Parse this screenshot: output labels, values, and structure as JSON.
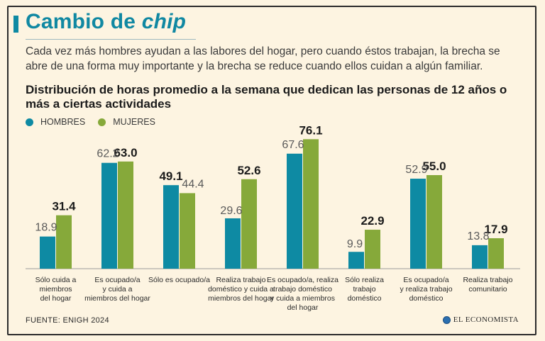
{
  "header": {
    "title_prefix": "Cambio de",
    "title_italic": "chip",
    "subtitle": "Cada vez más hombres ayudan a las labores del hogar, pero cuando éstos trabajan, la brecha se abre de una forma muy importante y la brecha se reduce cuando ellos cuidan a algún familiar.",
    "accent_color": "#1088a2"
  },
  "chart_heading": "Distribución de horas promedio a la semana que dedican las personas de 12 años o más a ciertas actividades",
  "legend": [
    {
      "label": "HOMBRES",
      "color": "#0e8aa3"
    },
    {
      "label": "MUJERES",
      "color": "#86a93a"
    }
  ],
  "chart_data": {
    "type": "bar",
    "title": "Distribución de horas promedio a la semana que dedican las personas de 12 años o más a ciertas actividades",
    "xlabel": "",
    "ylabel": "",
    "ylim": [
      0,
      80
    ],
    "categories": [
      [
        "Sólo cuida a",
        "miembros",
        "del hogar"
      ],
      [
        "Es ocupado/a",
        "y cuida a",
        "miembros del hogar"
      ],
      [
        "Sólo es ocupado/a"
      ],
      [
        "Realiza trabajo",
        "doméstico y cuida a",
        "miembros del hogar"
      ],
      [
        "Es ocupado/a, realiza",
        "trabajo doméstico",
        "y cuida a miembros",
        "del hogar"
      ],
      [
        "Sólo realiza",
        "trabajo",
        "doméstico"
      ],
      [
        "Es ocupado/a",
        "y realiza trabajo",
        "doméstico"
      ],
      [
        "Realiza trabajo",
        "comunitario"
      ]
    ],
    "series": [
      {
        "name": "HOMBRES",
        "color": "#0e8aa3",
        "values": [
          18.9,
          62.2,
          49.1,
          29.6,
          67.6,
          9.9,
          52.9,
          13.8
        ],
        "labels": [
          "18.9",
          "62.2",
          "49.1",
          "29.6",
          "67.6",
          "9.9",
          "52.9",
          "13.8"
        ]
      },
      {
        "name": "MUJERES",
        "color": "#86a93a",
        "values": [
          31.4,
          63.0,
          44.4,
          52.6,
          76.1,
          22.9,
          55.0,
          17.9
        ],
        "labels": [
          "31.4",
          "63.0",
          "44.4",
          "52.6",
          "76.1",
          "22.9",
          "55.0",
          "17.9"
        ]
      }
    ],
    "grid": false,
    "legend_position": "top-left"
  },
  "footer": {
    "source": "FUENTE: ENIGH 2024",
    "brand": "EL ECONOMISTA",
    "brand_icon": "economista-logo-icon"
  }
}
